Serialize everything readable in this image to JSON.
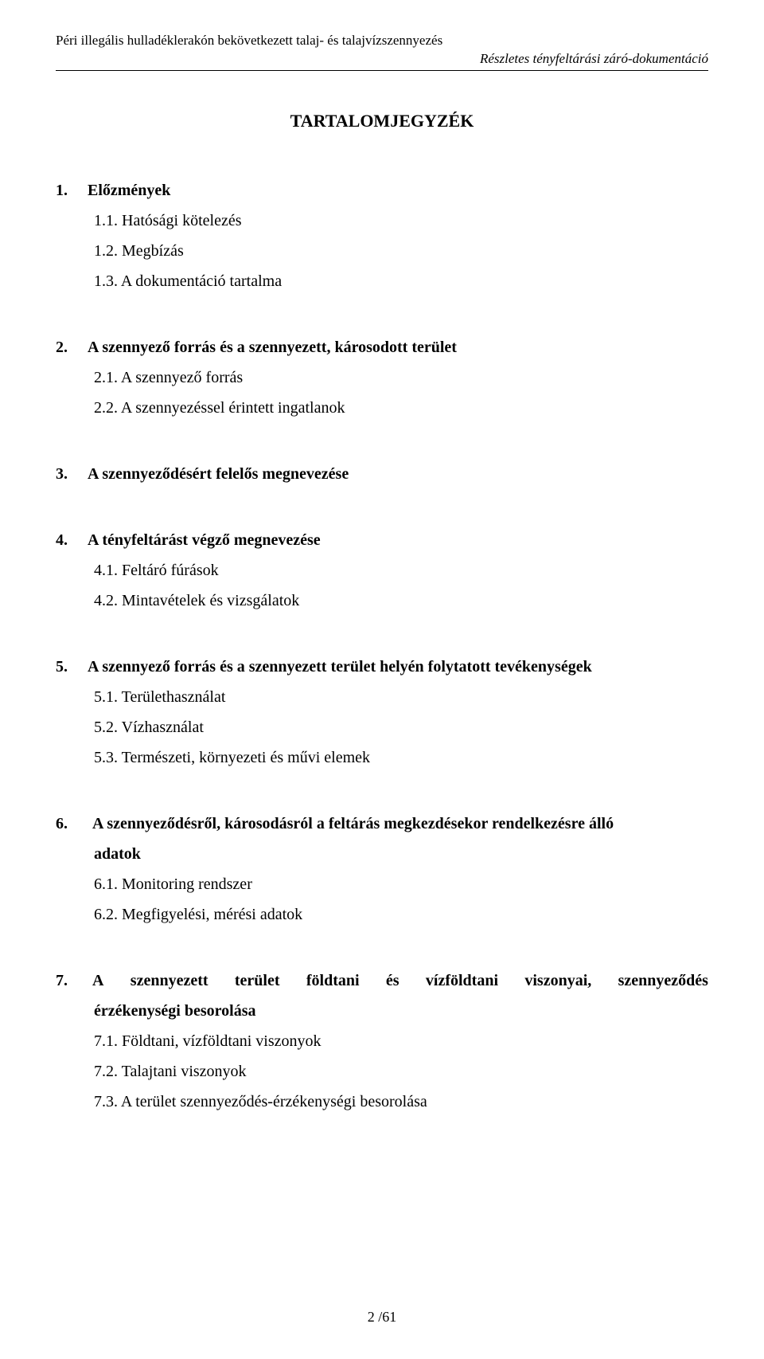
{
  "header": {
    "line1": "Péri illegális hulladéklerakón bekövetkezett talaj- és talajvízszennyezés",
    "line2": "Részletes tényfeltárási záró-dokumentáció"
  },
  "title": "TARTALOMJEGYZÉK",
  "sections": [
    {
      "head_num": "1.",
      "head_text": "Előzmények",
      "items": [
        {
          "num": "1.1.",
          "text": "Hatósági kötelezés"
        },
        {
          "num": "1.2.",
          "text": "Megbízás"
        },
        {
          "num": "1.3.",
          "text": "A dokumentáció tartalma"
        }
      ]
    },
    {
      "head_num": "2.",
      "head_text": "A szennyező forrás és a szennyezett, károsodott terület",
      "items": [
        {
          "num": "2.1.",
          "text": "A szennyező forrás"
        },
        {
          "num": "2.2.",
          "text": "A szennyezéssel érintett ingatlanok"
        }
      ]
    },
    {
      "head_num": "3.",
      "head_text": "A szennyeződésért felelős megnevezése",
      "items": []
    },
    {
      "head_num": "4.",
      "head_text": "A tényfeltárást végző megnevezése",
      "items": [
        {
          "num": "4.1.",
          "text": "Feltáró fúrások"
        },
        {
          "num": "4.2.",
          "text": "Mintavételek és vizsgálatok"
        }
      ]
    },
    {
      "head_num": "5.",
      "head_text": "A szennyező forrás és a szennyezett terület helyén folytatott tevékenységek",
      "items": [
        {
          "num": "5.1.",
          "text": "Területhasználat"
        },
        {
          "num": "5.2.",
          "text": "Vízhasználat"
        },
        {
          "num": "5.3.",
          "text": "Természeti, környezeti és művi elemek"
        }
      ]
    },
    {
      "head_num": "6.",
      "head_text_a": "A szennyeződésről, károsodásról a feltárás megkezdésekor rendelkezésre álló",
      "head_text_b": "adatok",
      "items": [
        {
          "num": "6.1.",
          "text": "Monitoring rendszer"
        },
        {
          "num": "6.2.",
          "text": "Megfigyelési, mérési adatok"
        }
      ]
    },
    {
      "head_num": "7.",
      "head_text_parts": [
        "A",
        "szennyezett",
        "terület",
        "földtani",
        "és",
        "vízföldtani",
        "viszonyai,",
        "szennyeződés"
      ],
      "head_text_b": "érzékenységi besorolása",
      "items": [
        {
          "num": "7.1.",
          "text": "Földtani, vízföldtani viszonyok"
        },
        {
          "num": "7.2.",
          "text": "Talajtani viszonyok"
        },
        {
          "num": "7.3.",
          "text": "A terület szennyeződés-érzékenységi besorolása"
        }
      ]
    }
  ],
  "page_number": "2 /61"
}
